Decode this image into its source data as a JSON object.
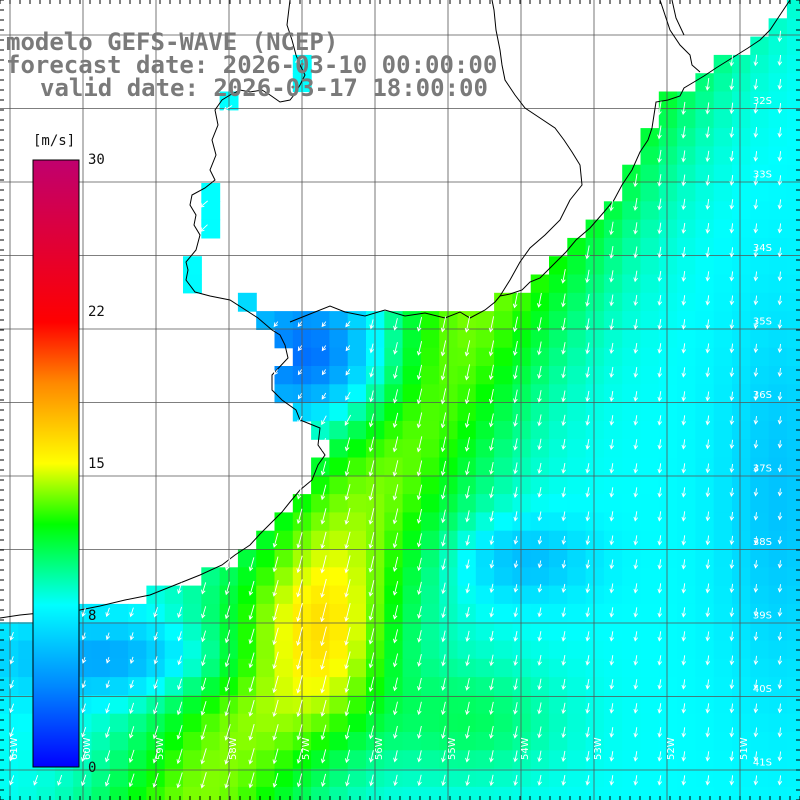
{
  "title": {
    "line1": "modelo GEFS-WAVE (NCEP)",
    "line2": "forecast date: 2026-03-10 00:00:00",
    "line3": "valid date: 2026-03-17 18:00:00"
  },
  "colorbar": {
    "unit": "[m/s]",
    "ticks": [
      "30",
      "22",
      "15",
      "8",
      "0"
    ],
    "colors": [
      "#0000ff",
      "#0088ff",
      "#00ffff",
      "#00ff00",
      "#ffff00",
      "#ff8800",
      "#ff0000",
      "#c0006e"
    ]
  },
  "lat_labels": [
    "32S",
    "33S",
    "34S",
    "35S",
    "36S",
    "37S",
    "38S",
    "39S",
    "40S",
    "41S"
  ],
  "lon_labels": [
    "61W",
    "60W",
    "59W",
    "58W",
    "57W",
    "56W",
    "55W",
    "54W",
    "53W",
    "52W",
    "51W"
  ],
  "colors": {
    "land": "#ffffff",
    "coastline": "#000000",
    "grid": "#555555",
    "arrows": "#ffffff",
    "title": "#7a7a7a"
  }
}
